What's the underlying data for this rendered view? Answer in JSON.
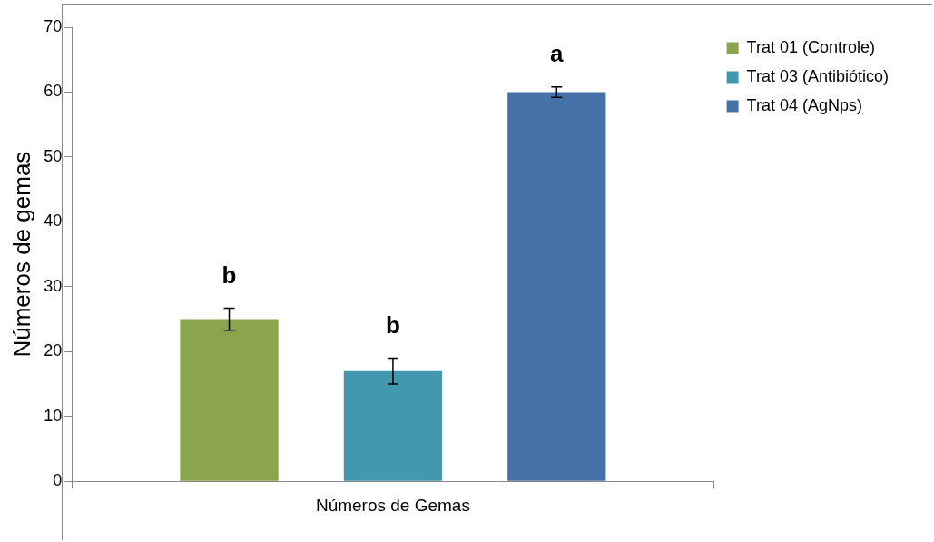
{
  "chart_data": {
    "type": "bar",
    "ylabel": "Números de gemas",
    "categories": [
      "Números de Gemas"
    ],
    "series": [
      {
        "name": "Trat 01 (Controle)",
        "color": "#8aa54c",
        "values": [
          25
        ],
        "errors": [
          1.7
        ]
      },
      {
        "name": "Trat 03 (Antibiótico)",
        "color": "#4298ae",
        "values": [
          17
        ],
        "errors": [
          2
        ]
      },
      {
        "name": "Trat 04 (AgNps)",
        "color": "#4571a6",
        "values": [
          60
        ],
        "errors": [
          0.8
        ]
      }
    ],
    "ylim": [
      0,
      70
    ],
    "yticks": [
      0,
      10,
      20,
      30,
      40,
      50,
      60,
      70
    ],
    "grid": false,
    "legend": "top right",
    "annotations": [
      "b",
      "b",
      "a"
    ]
  }
}
